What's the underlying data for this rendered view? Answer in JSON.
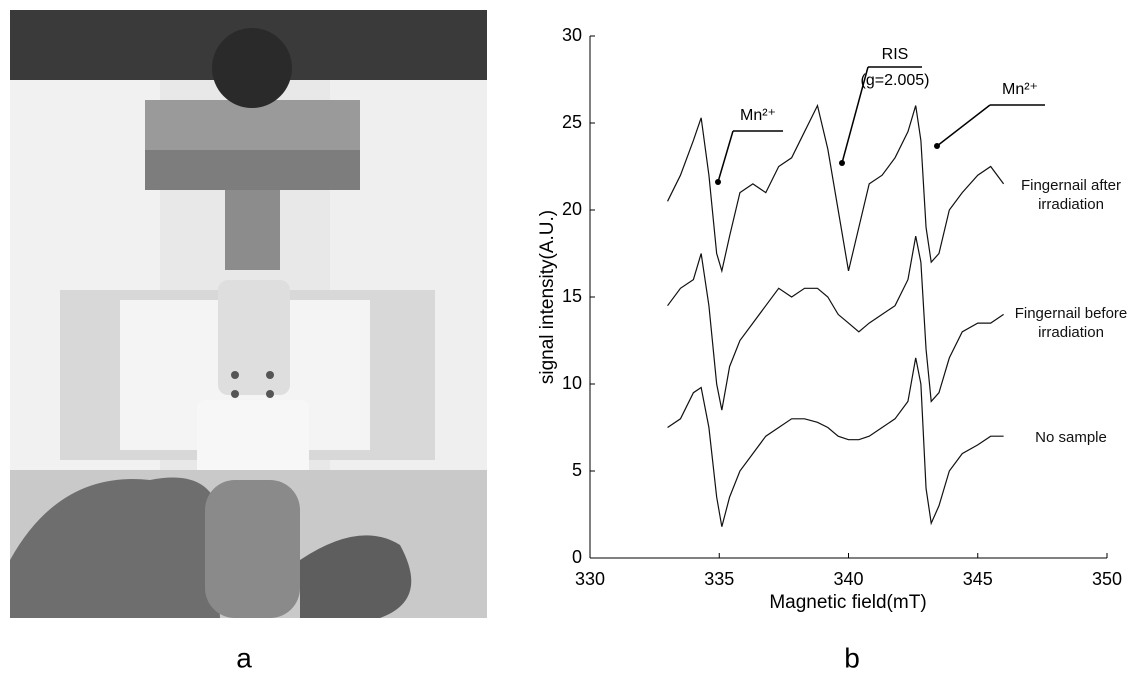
{
  "photo_label": "a",
  "chart_data": {
    "type": "line",
    "panel_label": "b",
    "xlabel": "Magnetic field(mT)",
    "ylabel": "signal intensity(A.U.)",
    "xlim": [
      330,
      350
    ],
    "xticks": [
      330,
      335,
      340,
      345,
      350
    ],
    "ylim": [
      0,
      30
    ],
    "yticks": [
      0,
      5,
      10,
      15,
      20,
      25,
      30
    ],
    "annotations": [
      "Mn²⁺",
      "RIS",
      "(g=2.005)",
      "Mn²⁺"
    ],
    "x": [
      333,
      333.5,
      334,
      334.3,
      334.6,
      334.9,
      335.1,
      335.4,
      335.8,
      336.3,
      336.8,
      337.3,
      337.8,
      338.3,
      338.8,
      339.2,
      339.6,
      340,
      340.4,
      340.8,
      341.3,
      341.8,
      342.3,
      342.6,
      342.8,
      343,
      343.2,
      343.5,
      343.9,
      344.4,
      345,
      345.5,
      346
    ],
    "series": [
      {
        "name": "Fingernail after irradiation",
        "color": "#111111",
        "values": [
          20.5,
          22,
          24,
          25.3,
          22,
          17.5,
          16.5,
          18.5,
          21,
          21.5,
          21,
          22.5,
          23,
          24.5,
          26,
          23.5,
          20,
          16.5,
          19,
          21.5,
          22,
          23,
          24.5,
          26,
          24,
          19,
          17,
          17.5,
          20,
          21,
          22,
          22.5,
          21.5
        ]
      },
      {
        "name": "Fingernail before irradiation",
        "color": "#111111",
        "values": [
          14.5,
          15.5,
          16,
          17.5,
          14.5,
          10,
          8.5,
          11,
          12.5,
          13.5,
          14.5,
          15.5,
          15,
          15.5,
          15.5,
          15,
          14,
          13.5,
          13,
          13.5,
          14,
          14.5,
          16,
          18.5,
          17,
          12,
          9,
          9.5,
          11.5,
          13,
          13.5,
          13.5,
          14
        ]
      },
      {
        "name": "No sample",
        "color": "#111111",
        "values": [
          7.5,
          8,
          9.5,
          9.8,
          7.5,
          3.5,
          1.8,
          3.5,
          5,
          6,
          7,
          7.5,
          8,
          8,
          7.8,
          7.5,
          7,
          6.8,
          6.8,
          7,
          7.5,
          8,
          9,
          11.5,
          10,
          4,
          2,
          3,
          5,
          6,
          6.5,
          7,
          7
        ]
      }
    ]
  }
}
